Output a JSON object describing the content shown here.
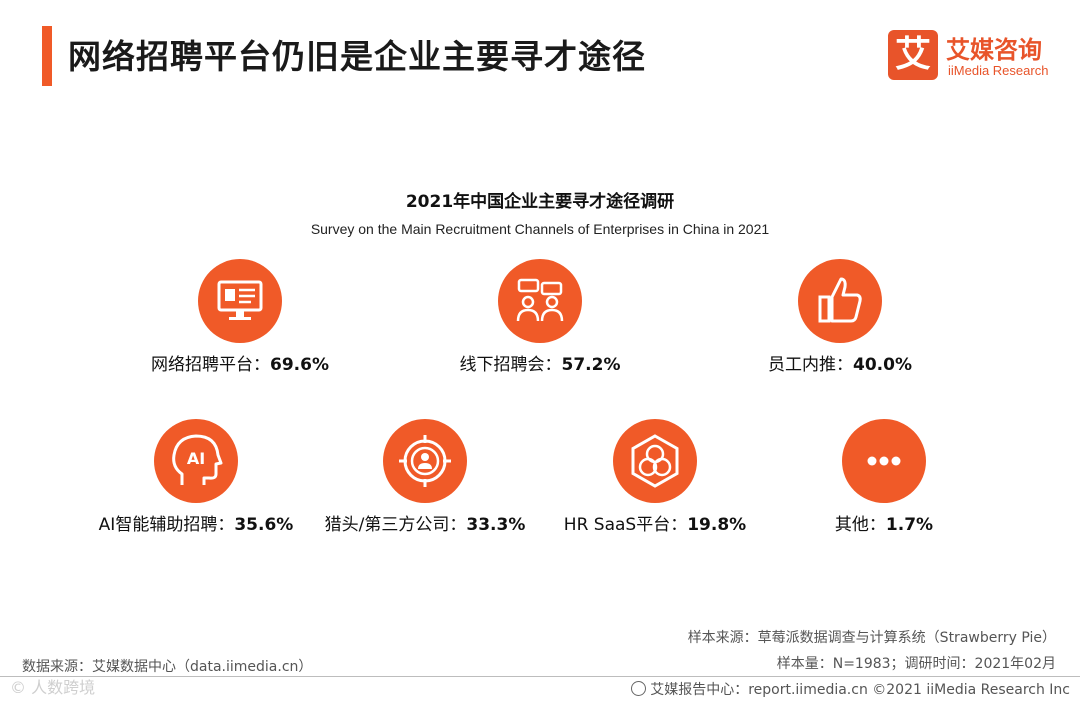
{
  "header": {
    "title": "网络招聘平台仍旧是企业主要寻才途径",
    "logo_cn": "艾媒咨询",
    "logo_en": "iiMedia Research",
    "logo_mark": "艾"
  },
  "colors": {
    "accent": "#f05a28",
    "logo": "#e8542a"
  },
  "chart_data": {
    "type": "table",
    "title": "2021年中国企业主要寻才途径调研",
    "subtitle": "Survey on the Main Recruitment Channels  of Enterprises in China in 2021",
    "unit": "%",
    "items": [
      {
        "label": "网络招聘平台",
        "value": 69.6,
        "display": "69.6%",
        "icon": "monitor-recruit-icon"
      },
      {
        "label": "线下招聘会",
        "value": 57.2,
        "display": "57.2%",
        "icon": "people-talk-icon"
      },
      {
        "label": "员工内推",
        "value": 40.0,
        "display": "40.0%",
        "icon": "thumbs-up-icon"
      },
      {
        "label": "AI智能辅助招聘",
        "value": 35.6,
        "display": "35.6%",
        "icon": "ai-head-icon"
      },
      {
        "label": "猎头/第三方公司",
        "value": 33.3,
        "display": "33.3%",
        "icon": "target-person-icon"
      },
      {
        "label": "HR SaaS平台",
        "value": 19.8,
        "display": "19.8%",
        "icon": "hexagon-cluster-icon"
      },
      {
        "label": "其他",
        "value": 1.7,
        "display": "1.7%",
        "icon": "ellipsis-icon"
      }
    ]
  },
  "sources": {
    "sample_source": "样本来源：草莓派数据调查与计算系统（Strawberry Pie）",
    "data_source": "数据来源：艾媒数据中心（data.iimedia.cn）",
    "sample_info": "样本量：N=1983；调研时间：2021年02月",
    "footer": "艾媒报告中心：report.iimedia.cn   ©2021  iiMedia Research  Inc",
    "watermark": "© 人数跨境"
  }
}
